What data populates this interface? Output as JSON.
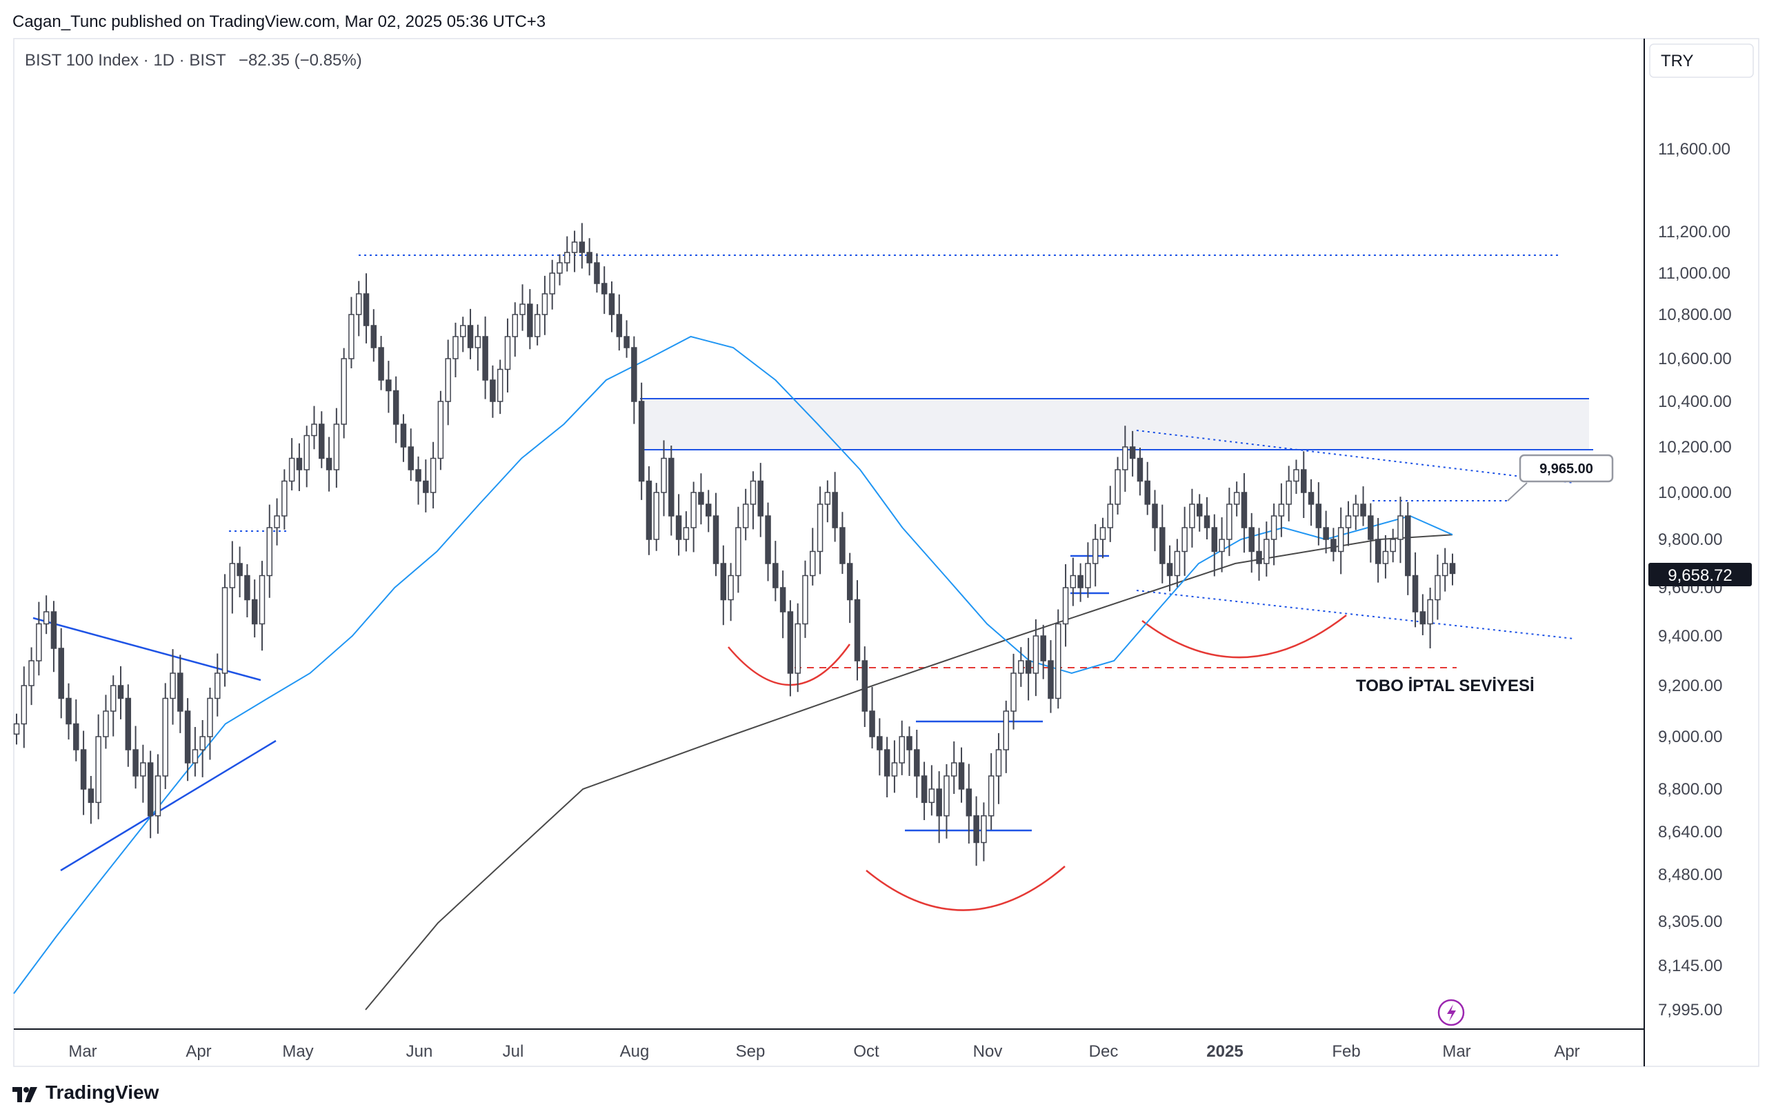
{
  "header": {
    "published_line": "Cagan_Tunc published on TradingView.com, Mar 02, 2025 05:36 UTC+3"
  },
  "legend": {
    "symbol_line": "BIST 100 Index · 1D · BIST",
    "change": "−82.35 (−0.85%)"
  },
  "currency_button": "TRY",
  "footer": {
    "brand": "TradingView"
  },
  "colors": {
    "candle": "#434651",
    "ma_short": "#2196f3",
    "ma_long": "#555555",
    "trend": "#1e53e5",
    "arc": "#e53935",
    "invalidation": "#e53935",
    "zone": "#e0e3eb"
  },
  "chart_data": {
    "type": "candlestick",
    "title": "BIST 100 Index · 1D · BIST",
    "currency": "TRY",
    "y_ticks": [
      "11,600.00",
      "11,200.00",
      "11,000.00",
      "10,800.00",
      "10,600.00",
      "10,400.00",
      "10,200.00",
      "10,000.00",
      "9,800.00",
      "9,600.00",
      "9,400.00",
      "9,200.00",
      "9,000.00",
      "8,800.00",
      "8,640.00",
      "8,480.00",
      "8,305.00",
      "8,145.00",
      "7,995.00"
    ],
    "x_ticks": [
      "Mar",
      "Apr",
      "May",
      "Jun",
      "Jul",
      "Aug",
      "Sep",
      "Oct",
      "Nov",
      "Dec",
      "2025",
      "Feb",
      "Mar",
      "Apr"
    ],
    "last_price": "9,658.72",
    "callout": "9,965.00",
    "annotation": "TOBO İPTAL SEVİYESİ",
    "resistance_zone": [
      10200,
      10410
    ],
    "invalidation_level": 9270,
    "series": [
      {
        "name": "Price (approx. closes)",
        "values": [
          9050,
          9200,
          9300,
          9450,
          9500,
          9350,
          9150,
          9050,
          8950,
          8800,
          8750,
          9000,
          9100,
          9200,
          9150,
          8950,
          8850,
          8900,
          8700,
          8850,
          9150,
          9250,
          9100,
          8900,
          8950,
          9000,
          9150,
          9250,
          9600,
          9700,
          9650,
          9550,
          9450,
          9650,
          9850,
          9900,
          10050,
          10150,
          10100,
          10250,
          10300,
          10150,
          10100,
          10300,
          10600,
          10800,
          10900,
          10750,
          10650,
          10500,
          10450,
          10300,
          10200,
          10100,
          10050,
          10000,
          10150,
          10400,
          10600,
          10700,
          10750,
          10650,
          10700,
          10500,
          10400,
          10550,
          10700,
          10800,
          10850,
          10700,
          10800,
          10900,
          11000,
          11050,
          11100,
          11150,
          11100,
          11050,
          10950,
          10900,
          10800,
          10700,
          10650,
          10400,
          10050,
          9800,
          10000,
          10150,
          9900,
          9800,
          9850,
          10000,
          9950,
          9900,
          9700,
          9550,
          9650,
          9850,
          9950,
          10050,
          9900,
          9700,
          9600,
          9500,
          9250,
          9450,
          9650,
          9750,
          9950,
          10000,
          9850,
          9700,
          9550,
          9300,
          9100,
          9000,
          8950,
          8850,
          8900,
          9000,
          8950,
          8850,
          8750,
          8800,
          8700,
          8850,
          8900,
          8800,
          8700,
          8600,
          8700,
          8850,
          8950,
          9100,
          9250,
          9300,
          9250,
          9400,
          9300,
          9150,
          9450,
          9600,
          9650,
          9600,
          9700,
          9800,
          9850,
          9950,
          10100,
          10200,
          10150,
          10050,
          9950,
          9850,
          9700,
          9650,
          9750,
          9850,
          9950,
          9900,
          9850,
          9750,
          9800,
          9950,
          10000,
          9850,
          9750,
          9700,
          9800,
          9900,
          9950,
          10050,
          10100,
          10000,
          9950,
          9850,
          9800,
          9750,
          9850,
          9900,
          9950,
          9900,
          9800,
          9700,
          9750,
          9800,
          9900,
          9650,
          9500,
          9450,
          9550,
          9650,
          9700,
          9658.72
        ]
      },
      {
        "name": "Short MA (blue)",
        "values": [
          8050,
          8250,
          8450,
          8650,
          8850,
          9050,
          9150,
          9250,
          9400,
          9600,
          9750,
          9950,
          10150,
          10300,
          10500,
          10600,
          10700,
          10650,
          10500,
          10300,
          10100,
          9850,
          9650,
          9450,
          9300,
          9250,
          9300,
          9500,
          9700,
          9800,
          9850,
          9800,
          9850,
          9900,
          9820
        ]
      },
      {
        "name": "Long MA (grey)",
        "values": [
          7995,
          8300,
          8550,
          8800,
          8900,
          9000,
          9100,
          9200,
          9300,
          9400,
          9500,
          9600,
          9700,
          9750,
          9800,
          9820
        ]
      }
    ]
  }
}
